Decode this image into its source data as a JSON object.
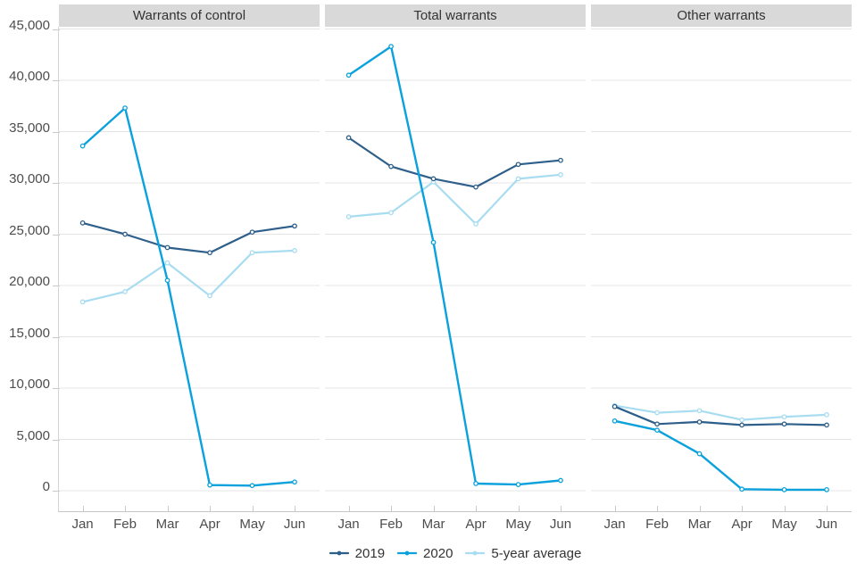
{
  "chart_data": {
    "type": "line",
    "categories": [
      "Jan",
      "Feb",
      "Mar",
      "Apr",
      "May",
      "Jun"
    ],
    "series_names": [
      "2019",
      "2020",
      "5-year average"
    ],
    "colors": {
      "2019": "#2e5f8a",
      "2020": "#0aa1dd",
      "5-year average": "#a8dcf0"
    },
    "facets": [
      {
        "title": "Warrants of control",
        "series": [
          {
            "name": "2019",
            "values": [
              26100,
              25000,
              23700,
              23200,
              25200,
              25800
            ]
          },
          {
            "name": "2020",
            "values": [
              33600,
              37300,
              20500,
              550,
              500,
              850
            ]
          },
          {
            "name": "5-year average",
            "values": [
              18400,
              19400,
              22200,
              19000,
              23200,
              23400
            ]
          }
        ]
      },
      {
        "title": "Total warrants",
        "series": [
          {
            "name": "2019",
            "values": [
              34400,
              31600,
              30400,
              29600,
              31800,
              32200
            ]
          },
          {
            "name": "2020",
            "values": [
              40500,
              43300,
              24200,
              700,
              600,
              1000
            ]
          },
          {
            "name": "5-year average",
            "values": [
              26700,
              27100,
              30100,
              26000,
              30400,
              30800
            ]
          }
        ]
      },
      {
        "title": "Other warrants",
        "series": [
          {
            "name": "2019",
            "values": [
              8200,
              6500,
              6700,
              6400,
              6500,
              6400
            ]
          },
          {
            "name": "2020",
            "values": [
              6800,
              5900,
              3600,
              150,
              100,
              100
            ]
          },
          {
            "name": "5-year average",
            "values": [
              8300,
              7600,
              7800,
              6900,
              7200,
              7400
            ]
          }
        ]
      }
    ],
    "y_axis": {
      "min": 0,
      "max": 45000,
      "step": 5000,
      "tick_labels": [
        "0",
        "5,000",
        "10,000",
        "15,000",
        "20,000",
        "25,000",
        "30,000",
        "35,000",
        "40,000",
        "45,000"
      ]
    },
    "legend": {
      "entries": [
        "2019",
        "2020",
        "5-year average"
      ],
      "position": "bottom"
    },
    "grid": "horizontal",
    "style": {
      "strip_background": "#d9d9d9",
      "gridline_color": "#e4e4e4",
      "axis_color": "#c6c6c6",
      "label_color": "#4d4d4d"
    }
  }
}
